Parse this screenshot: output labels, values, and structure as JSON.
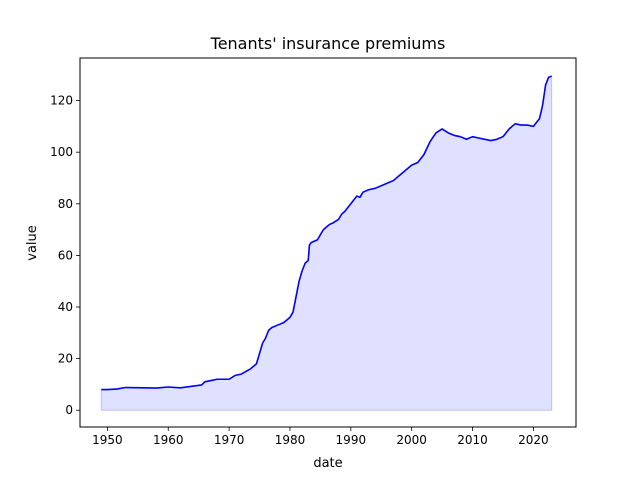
{
  "chart_data": {
    "type": "area",
    "title": "Tenants' insurance premiums",
    "xlabel": "date",
    "ylabel": "value",
    "xlim": [
      1945.5,
      2027
    ],
    "ylim": [
      -6.5,
      136.5
    ],
    "x_ticks": [
      1950,
      1960,
      1970,
      1980,
      1990,
      2000,
      2010,
      2020
    ],
    "y_ticks": [
      0,
      20,
      40,
      60,
      80,
      100,
      120
    ],
    "grid": false,
    "legend": "none",
    "colors": {
      "line": "#0000ff",
      "fill": "#0000ff",
      "fill_opacity": 0.12
    },
    "series": [
      {
        "x": [
          1949.0,
          1950.0,
          1951.5,
          1953.0,
          1956.0,
          1958.0,
          1960.0,
          1962.0,
          1964.0,
          1965.5,
          1966.0,
          1967.0,
          1968.0,
          1970.0,
          1971.0,
          1972.0,
          1973.5,
          1974.5,
          1975.0,
          1975.5,
          1976.0,
          1976.5,
          1977.0,
          1978.0,
          1979.0,
          1980.0,
          1980.5,
          1981.0,
          1981.5,
          1982.0,
          1982.5,
          1983.0,
          1983.2,
          1983.5,
          1984.5,
          1985.0,
          1985.5,
          1986.0,
          1986.5,
          1987.0,
          1988.0,
          1988.5,
          1989.0,
          1990.0,
          1991.0,
          1991.5,
          1992.0,
          1993.0,
          1994.0,
          1995.0,
          1996.0,
          1997.0,
          1998.0,
          1999.0,
          2000.0,
          2001.0,
          2002.0,
          2003.0,
          2004.0,
          2005.0,
          2006.0,
          2007.0,
          2008.0,
          2009.0,
          2010.0,
          2011.0,
          2012.0,
          2013.0,
          2014.0,
          2015.0,
          2016.0,
          2017.0,
          2018.0,
          2019.0,
          2020.0,
          2021.0,
          2021.5,
          2022.0,
          2022.5,
          2023.0
        ],
        "values": [
          8.0,
          8.0,
          8.2,
          8.8,
          8.7,
          8.6,
          9.0,
          8.7,
          9.3,
          9.8,
          11.0,
          11.5,
          12.0,
          12.0,
          13.5,
          14.0,
          16.0,
          18.0,
          22.0,
          26.0,
          28.0,
          31.0,
          32.0,
          33.0,
          34.0,
          36.0,
          38.0,
          44.0,
          50.0,
          54.0,
          57.0,
          58.0,
          64.0,
          65.0,
          66.0,
          68.0,
          70.0,
          71.0,
          72.0,
          72.5,
          74.0,
          76.0,
          77.0,
          80.0,
          83.0,
          82.5,
          84.5,
          85.5,
          86.0,
          87.0,
          88.0,
          89.0,
          91.0,
          93.0,
          95.0,
          96.0,
          99.0,
          104.0,
          107.5,
          109.0,
          107.5,
          106.5,
          106.0,
          105.0,
          106.0,
          105.5,
          105.0,
          104.5,
          105.0,
          106.0,
          109.0,
          111.0,
          110.5,
          110.5,
          110.0,
          113.0,
          118.0,
          126.0,
          129.0,
          129.5
        ]
      }
    ]
  }
}
